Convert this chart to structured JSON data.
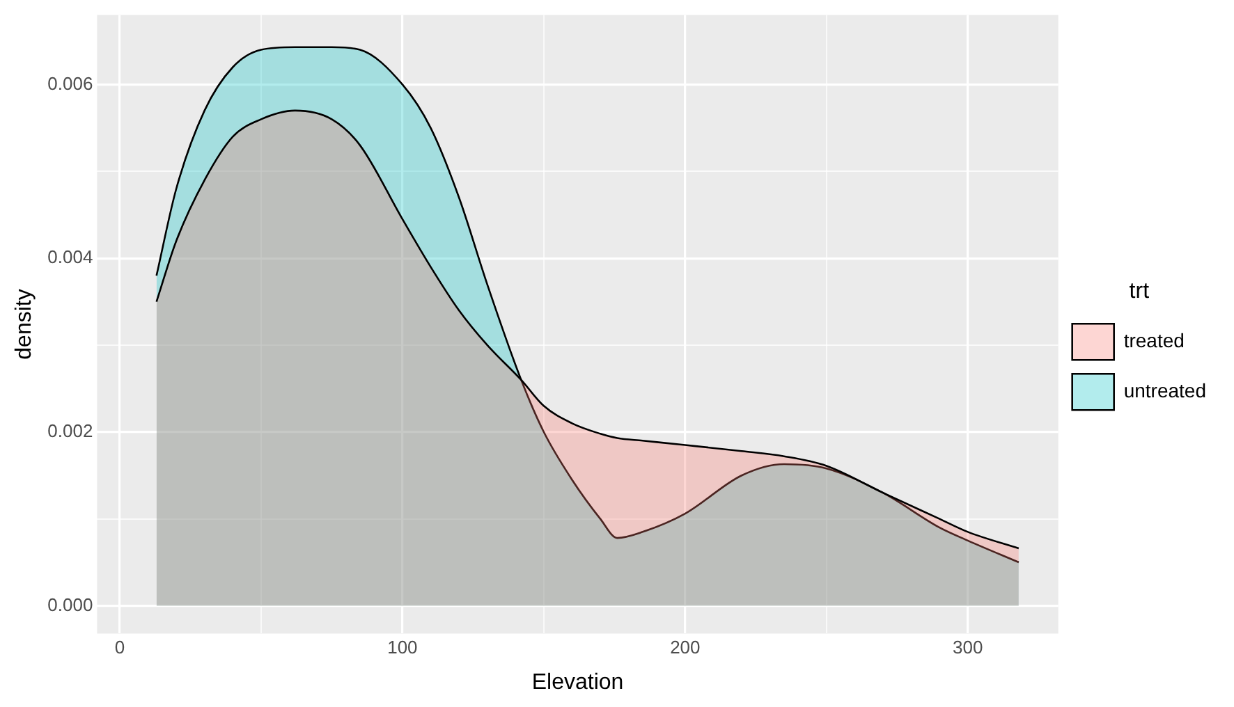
{
  "chart_data": {
    "type": "area",
    "xlabel": "Elevation",
    "ylabel": "density",
    "legend_title": "trt",
    "legend": "right",
    "grid": true,
    "marker": "none",
    "x": [
      13,
      20,
      30,
      40,
      50,
      62,
      75,
      85,
      100,
      110,
      120,
      130,
      142,
      150,
      160,
      170,
      176,
      185,
      200,
      220,
      235,
      250,
      270,
      290,
      300,
      318
    ],
    "series": [
      {
        "name": "treated",
        "color": "#f8766d",
        "values": [
          0.0035,
          0.0042,
          0.0049,
          0.0054,
          0.0056,
          0.0057,
          0.0056,
          0.0053,
          0.00445,
          0.0039,
          0.0034,
          0.003,
          0.0026,
          0.0023,
          0.0021,
          0.00198,
          0.00193,
          0.0019,
          0.00185,
          0.00178,
          0.00172,
          0.00161,
          0.0013,
          0.001,
          0.00085,
          0.00066
        ]
      },
      {
        "name": "untreated",
        "color": "#00bfc4",
        "values": [
          0.0038,
          0.0048,
          0.0057,
          0.0062,
          0.0064,
          0.00643,
          0.00643,
          0.0064,
          0.006,
          0.0055,
          0.0047,
          0.0037,
          0.0026,
          0.002,
          0.00145,
          0.001,
          0.00078,
          0.00085,
          0.00106,
          0.0015,
          0.00163,
          0.00158,
          0.0013,
          0.0009,
          0.00075,
          0.0005
        ]
      }
    ],
    "xlim": [
      -8,
      332
    ],
    "xticks": [
      0,
      {
        "value": 50,
        "label": null
      },
      100,
      {
        "value": 150,
        "label": null
      },
      200,
      {
        "value": 250,
        "label": null
      },
      300
    ],
    "ylim": [
      -0.00032,
      0.0068
    ],
    "yticks": [
      {
        "value": 0,
        "label": "0.000"
      },
      {
        "value": 0.001,
        "label": null
      },
      {
        "value": 0.002,
        "label": "0.002"
      },
      {
        "value": 0.003,
        "label": null
      },
      {
        "value": 0.004,
        "label": "0.004"
      },
      {
        "value": 0.005,
        "label": null
      },
      {
        "value": 0.006,
        "label": "0.006"
      }
    ]
  }
}
